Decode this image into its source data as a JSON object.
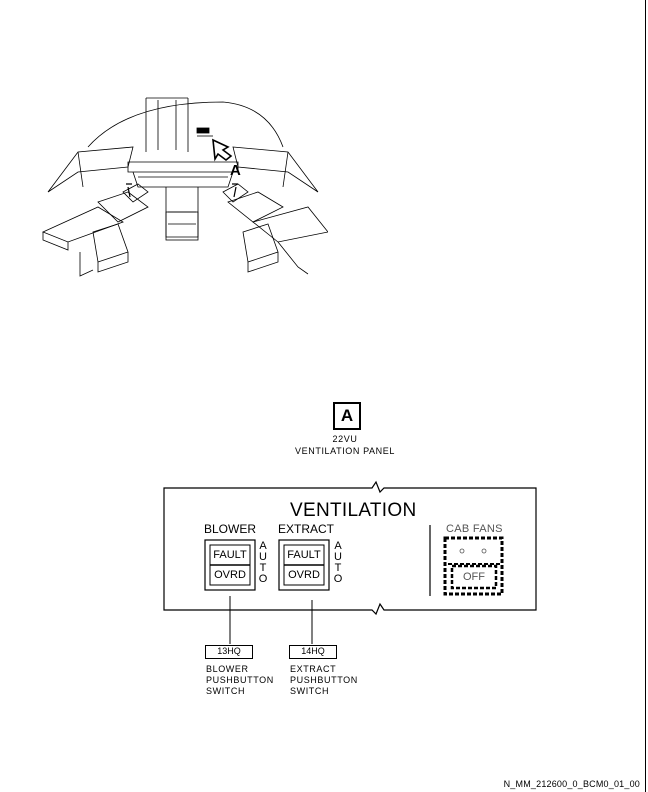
{
  "view_marker": "A",
  "key": {
    "letter": "A",
    "panel_code": "22VU",
    "panel_name": "VENTILATION PANEL"
  },
  "panel": {
    "title": "VENTILATION",
    "blower": {
      "label": "BLOWER",
      "fault": "FAULT",
      "ovrd": "OVRD",
      "auto": [
        "A",
        "U",
        "T",
        "O"
      ]
    },
    "extract": {
      "label": "EXTRACT",
      "fault": "FAULT",
      "ovrd": "OVRD",
      "auto": [
        "A",
        "U",
        "T",
        "O"
      ]
    },
    "cab_fans": {
      "label": "CAB FANS",
      "off": "OFF"
    }
  },
  "callouts": [
    {
      "code": "13HQ",
      "lines": [
        "BLOWER",
        "PUSHBUTTON",
        "SWITCH"
      ]
    },
    {
      "code": "14HQ",
      "lines": [
        "EXTRACT",
        "PUSHBUTTON",
        "SWITCH"
      ]
    }
  ],
  "doc_id": "N_MM_212600_0_BCM0_01_00"
}
